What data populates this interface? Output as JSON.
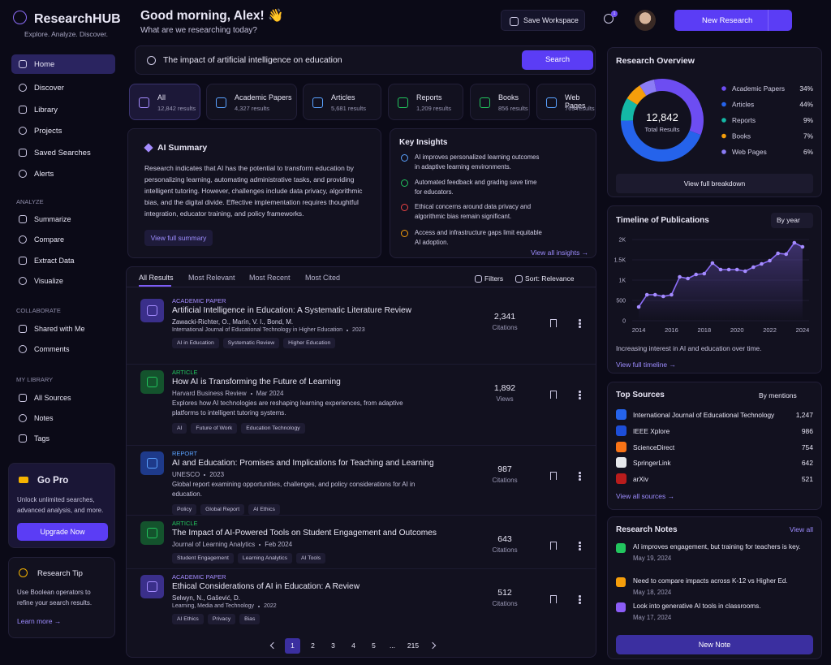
{
  "sidebar": {
    "brand": "ResearchHUB",
    "tagline": "Explore. Analyze. Discover.",
    "nav": [
      "Home",
      "Discover",
      "Library",
      "Projects",
      "Saved Searches",
      "Alerts"
    ],
    "sections": [
      {
        "title": "ANALYZE",
        "items": [
          "Summarize",
          "Compare",
          "Extract Data",
          "Visualize"
        ]
      },
      {
        "title": "COLLABORATE",
        "items": [
          "Shared with Me",
          "Comments"
        ]
      },
      {
        "title": "MY LIBRARY",
        "items": [
          "All Sources",
          "Notes",
          "Tags"
        ]
      }
    ],
    "pro": {
      "title": "Go Pro",
      "text": "Unlock unlimited searches, advanced analysis, and more.",
      "button": "Upgrade Now"
    },
    "tip": {
      "title": "Research Tip",
      "text": "Use Boolean operators to refine your search results.",
      "link": "Learn more →"
    }
  },
  "header": {
    "greeting": "Good morning, Alex! 👋",
    "subtitle": "What are we researching today?",
    "save": "Save Workspace",
    "notifications": "1",
    "new_research": "New Research"
  },
  "search": {
    "query": "The impact of artificial intelligence on education",
    "button": "Search"
  },
  "filters": [
    {
      "label": "All",
      "count": "12,842 results"
    },
    {
      "label": "Academic Papers",
      "count": "4,327 results"
    },
    {
      "label": "Articles",
      "count": "5,681 results"
    },
    {
      "label": "Reports",
      "count": "1,209 results"
    },
    {
      "label": "Books",
      "count": "856 results"
    },
    {
      "label": "Web Pages",
      "count": "769 results"
    }
  ],
  "summary": {
    "title": "AI Summary",
    "text": "Research indicates that AI has the potential to transform education by personalizing learning, automating administrative tasks, and providing intelligent tutoring. However, challenges include data privacy, algorithmic bias, and the digital divide. Effective implementation requires thoughtful integration, educator training, and policy frameworks.",
    "link": "View full summary"
  },
  "insights": {
    "title": "Key Insights",
    "items": [
      "AI improves personalized learning outcomes in adaptive learning environments.",
      "Automated feedback and grading save time for educators.",
      "Ethical concerns around data privacy and algorithmic bias remain significant.",
      "Access and infrastructure gaps limit equitable AI adoption."
    ],
    "link": "View all insights →"
  },
  "results": {
    "tabs": [
      "All Results",
      "Most Relevant",
      "Most Recent",
      "Most Cited"
    ],
    "filters": "Filters",
    "sort": "Sort: Relevance",
    "items": [
      {
        "type": "ACADEMIC PAPER",
        "title": "Artificial Intelligence in Education: A Systematic Literature Review",
        "authors": "Zawacki-Richter, O., Marín, V. I., Bond, M.",
        "source": "International Journal of Educational Technology in Higher Education",
        "date": "2023",
        "tags": [
          "AI in Education",
          "Systematic Review",
          "Higher Education"
        ],
        "count": "2,341",
        "metric": "Citations"
      },
      {
        "type": "ARTICLE",
        "title": "How AI is Transforming the Future of Learning",
        "source": "Harvard Business Review",
        "date": "Mar 2024",
        "description": "Explores how AI technologies are reshaping learning experiences, from adaptive platforms to intelligent tutoring systems.",
        "tags": [
          "AI",
          "Future of Work",
          "Education Technology"
        ],
        "count": "1,892",
        "metric": "Views"
      },
      {
        "type": "REPORT",
        "title": "AI and Education: Promises and Implications for Teaching and Learning",
        "source": "UNESCO",
        "date": "2023",
        "description": "Global report examining opportunities, challenges, and policy considerations for AI in education.",
        "tags": [
          "Policy",
          "Global Report",
          "AI Ethics"
        ],
        "count": "987",
        "metric": "Citations"
      },
      {
        "type": "ARTICLE",
        "title": "The Impact of AI-Powered Tools on Student Engagement and Outcomes",
        "source": "Journal of Learning Analytics",
        "date": "Feb 2024",
        "tags": [
          "Student Engagement",
          "Learning Analytics",
          "AI Tools"
        ],
        "count": "643",
        "metric": "Citations"
      },
      {
        "type": "ACADEMIC PAPER",
        "title": "Ethical Considerations of AI in Education: A Review",
        "authors": "Selwyn, N., Gašević, D.",
        "source": "Learning, Media and Technology",
        "date": "2022",
        "tags": [
          "AI Ethics",
          "Privacy",
          "Bias"
        ],
        "count": "512",
        "metric": "Citations"
      }
    ],
    "pages": [
      "1",
      "2",
      "3",
      "4",
      "5",
      "...",
      "215"
    ]
  },
  "overview": {
    "title": "Research Overview",
    "total": "12,842",
    "total_label": "Total Results",
    "link": "View full breakdown",
    "chart": {
      "type": "pie",
      "categories": [
        "Academic Papers",
        "Articles",
        "Reports",
        "Books",
        "Web Pages"
      ],
      "values": [
        34,
        44,
        9,
        7,
        6
      ],
      "value_labels": [
        "34%",
        "44%",
        "9%",
        "7%",
        "6%"
      ],
      "colors": [
        "#6d4df2",
        "#2563eb",
        "#14b8a6",
        "#f59e0b",
        "#8b7cf6"
      ]
    }
  },
  "timeline": {
    "title": "Timeline of Publications",
    "control": "By year",
    "caption": "Increasing interest in AI and education over time.",
    "link": "View full timeline →",
    "chart": {
      "type": "line",
      "x": [
        2014,
        2014.5,
        2015,
        2015.5,
        2016,
        2016.5,
        2017,
        2017.5,
        2018,
        2018.5,
        2019,
        2019.5,
        2020,
        2020.5,
        2021,
        2021.5,
        2022,
        2022.5,
        2023,
        2023.5,
        2024
      ],
      "values": [
        340,
        640,
        640,
        600,
        640,
        1080,
        1040,
        1140,
        1160,
        1420,
        1260,
        1260,
        1260,
        1220,
        1320,
        1400,
        1480,
        1660,
        1640,
        1920,
        1820
      ],
      "color": "#8b6cf6",
      "xlim": [
        2013.6,
        2024.4
      ],
      "ylim": [
        0,
        2200
      ],
      "xticks": [
        2014,
        2016,
        2018,
        2020,
        2022,
        2024
      ],
      "yticks": [
        0,
        500,
        {
          "value": 1000,
          "label": "1K"
        },
        {
          "value": 1500,
          "label": "1.5K"
        },
        {
          "value": 2000,
          "label": "2K"
        }
      ],
      "grid": true
    }
  },
  "sources": {
    "title": "Top Sources",
    "control": "By mentions",
    "items": [
      {
        "name": "International Journal of Educational Technology",
        "count": "1,247"
      },
      {
        "name": "IEEE Xplore",
        "count": "986"
      },
      {
        "name": "ScienceDirect",
        "count": "754"
      },
      {
        "name": "SpringerLink",
        "count": "642"
      },
      {
        "name": "arXiv",
        "count": "521"
      }
    ],
    "link": "View all sources →"
  },
  "notes": {
    "title": "Research Notes",
    "view_all": "View all",
    "items": [
      {
        "text": "AI improves engagement, but training for teachers is key.",
        "date": "May 19, 2024"
      },
      {
        "text": "Need to compare impacts across K-12 vs Higher Ed.",
        "date": "May 18, 2024"
      },
      {
        "text": "Look into generative AI tools in classrooms.",
        "date": "May 17, 2024"
      }
    ],
    "button": "New Note"
  }
}
